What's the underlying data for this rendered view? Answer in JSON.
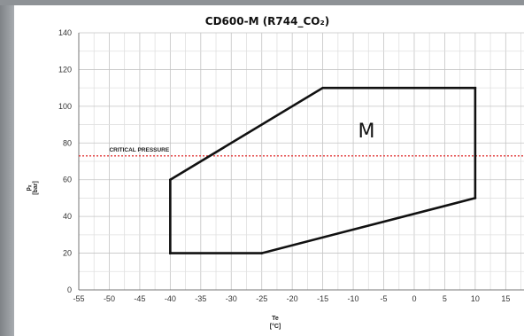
{
  "chart_data": {
    "type": "line",
    "title": "CD600-M (R744_CO₂)",
    "xlabel": "Te",
    "xlabel_unit": "[°C]",
    "ylabel": "pᵪ",
    "ylabel_unit": "[bar]",
    "xlim": [
      -55,
      18
    ],
    "ylim": [
      0,
      140
    ],
    "x_ticks": [
      -55,
      -50,
      -45,
      -40,
      -35,
      -30,
      -25,
      -20,
      -15,
      -10,
      -5,
      0,
      5,
      10,
      15
    ],
    "y_ticks": [
      0,
      20,
      40,
      60,
      80,
      100,
      120,
      140
    ],
    "grid": true,
    "series": [
      {
        "name": "M",
        "closed": true,
        "color": "#111111",
        "points": [
          {
            "x": -40,
            "y": 20
          },
          {
            "x": -25,
            "y": 20
          },
          {
            "x": 10,
            "y": 50
          },
          {
            "x": 10,
            "y": 110
          },
          {
            "x": -15,
            "y": 110
          },
          {
            "x": -40,
            "y": 60
          }
        ]
      }
    ],
    "reference_line": {
      "label": "CRITICAL PRESSURE",
      "y": 73,
      "color": "#e23a3a"
    },
    "region_label": "M"
  }
}
